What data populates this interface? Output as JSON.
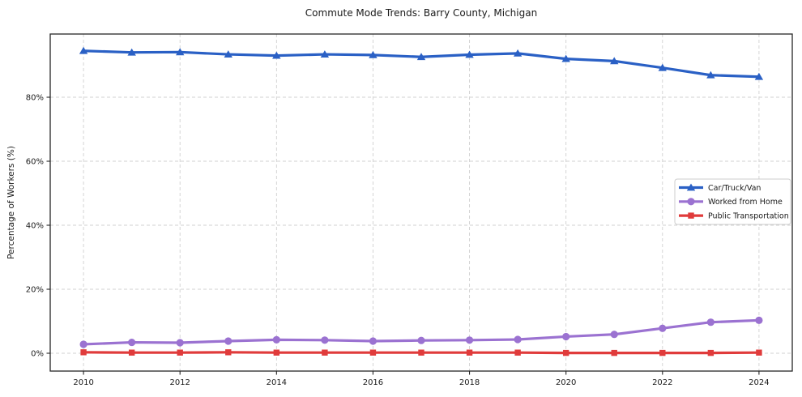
{
  "chart_data": {
    "type": "line",
    "title": "Commute Mode Trends: Barry County, Michigan",
    "xlabel": "",
    "ylabel": "Percentage of Workers (%)",
    "x": [
      2010,
      2011,
      2012,
      2013,
      2014,
      2015,
      2016,
      2017,
      2018,
      2019,
      2020,
      2021,
      2022,
      2023,
      2024
    ],
    "x_ticks": [
      2010,
      2012,
      2014,
      2016,
      2018,
      2020,
      2022,
      2024
    ],
    "x_tick_labels": [
      "2010",
      "2012",
      "2014",
      "2016",
      "2018",
      "2020",
      "2022",
      "2024"
    ],
    "y_ticks": [
      0,
      20,
      40,
      60,
      80
    ],
    "y_tick_labels": [
      "0%",
      "20%",
      "40%",
      "60%",
      "80%"
    ],
    "xlim": [
      2009.31,
      2024.69
    ],
    "ylim": [
      -5.57,
      99.75
    ],
    "grid": true,
    "grid_style": "dashed",
    "legend_position": "center-right",
    "series": [
      {
        "name": "Car/Truck/Van",
        "color": "#2a60c5",
        "marker": "triangle",
        "values": [
          94.5,
          94.0,
          94.1,
          93.4,
          93.0,
          93.4,
          93.2,
          92.6,
          93.3,
          93.7,
          92.0,
          91.3,
          89.2,
          86.9,
          86.4
        ]
      },
      {
        "name": "Worked from Home",
        "color": "#9b72d1",
        "marker": "circle",
        "values": [
          2.8,
          3.4,
          3.3,
          3.8,
          4.2,
          4.1,
          3.8,
          4.0,
          4.1,
          4.3,
          5.2,
          5.9,
          7.8,
          9.7,
          10.3
        ]
      },
      {
        "name": "Public Transportation",
        "color": "#e03b3b",
        "marker": "square",
        "values": [
          0.3,
          0.2,
          0.2,
          0.3,
          0.2,
          0.2,
          0.2,
          0.2,
          0.2,
          0.2,
          0.1,
          0.1,
          0.1,
          0.1,
          0.2
        ]
      }
    ],
    "colors": {
      "grid": "#cbcbcb",
      "spine": "#262626",
      "background": "#ffffff",
      "legend_border": "#cccccc"
    }
  }
}
